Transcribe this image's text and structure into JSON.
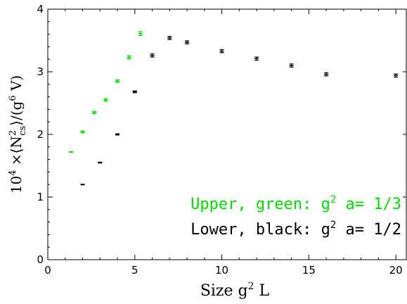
{
  "chart_data": {
    "type": "scatter",
    "title": "",
    "xlabel_parts": {
      "pre": "Size g",
      "sup": "2",
      "post": " L"
    },
    "ylabel_parts": {
      "a": "10",
      "a_sup": "4",
      "b": " ×⟨N",
      "b_sup": "2",
      "b_sub": "cs",
      "c": "⟩/(g",
      "c_sup": "6",
      "d": " V)"
    },
    "xlim": [
      0,
      20.6
    ],
    "ylim": [
      0,
      4
    ],
    "xticks": [
      0,
      5,
      10,
      15,
      20
    ],
    "yticks": [
      0,
      1,
      2,
      3,
      4
    ],
    "grid": false,
    "legend_position": "bottom-right",
    "series": [
      {
        "name": "Upper, green: g² a= 1/3",
        "legend_parts": {
          "pre": "Upper, green: g",
          "sup": "2",
          "post": " a= 1/3"
        },
        "color": "#00dd00",
        "points": [
          {
            "x": 1.33,
            "y": 1.72,
            "err": 0.005
          },
          {
            "x": 2.0,
            "y": 2.04,
            "err": 0.015
          },
          {
            "x": 2.67,
            "y": 2.35,
            "err": 0.02
          },
          {
            "x": 3.33,
            "y": 2.55,
            "err": 0.02
          },
          {
            "x": 4.0,
            "y": 2.85,
            "err": 0.02
          },
          {
            "x": 4.67,
            "y": 3.23,
            "err": 0.025
          },
          {
            "x": 5.33,
            "y": 3.61,
            "err": 0.03
          }
        ]
      },
      {
        "name": "Lower, black: g² a= 1/2",
        "legend_parts": {
          "pre": "Lower, black: g",
          "sup": "2",
          "post": " a= 1/2"
        },
        "color": "#000000",
        "points": [
          {
            "x": 2,
            "y": 1.2,
            "err": 0.005
          },
          {
            "x": 3,
            "y": 1.55,
            "err": 0.008
          },
          {
            "x": 4,
            "y": 2.0,
            "err": 0.01
          },
          {
            "x": 5,
            "y": 2.68,
            "err": 0.015
          },
          {
            "x": 6,
            "y": 3.26,
            "err": 0.025
          },
          {
            "x": 7,
            "y": 3.54,
            "err": 0.025
          },
          {
            "x": 8,
            "y": 3.47,
            "err": 0.025
          },
          {
            "x": 10,
            "y": 3.33,
            "err": 0.025
          },
          {
            "x": 12,
            "y": 3.21,
            "err": 0.025
          },
          {
            "x": 14,
            "y": 3.1,
            "err": 0.025
          },
          {
            "x": 16,
            "y": 2.96,
            "err": 0.025
          },
          {
            "x": 20,
            "y": 2.94,
            "err": 0.025
          }
        ]
      }
    ]
  }
}
